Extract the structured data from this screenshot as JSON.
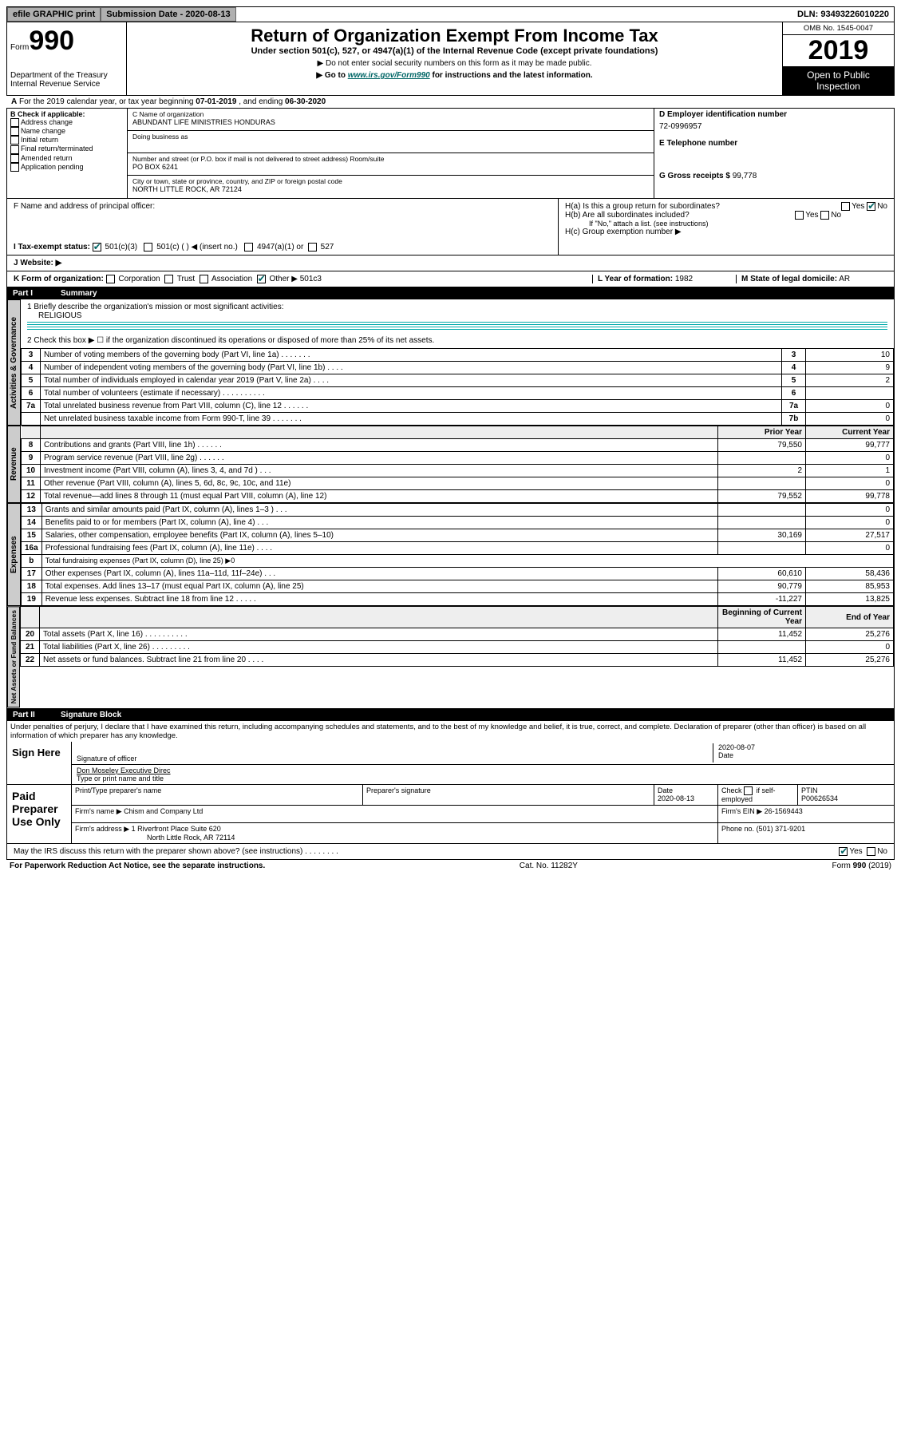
{
  "topbar": {
    "efile": "efile GRAPHIC print",
    "submission": "Submission Date - 2020-08-13",
    "dln": "DLN: 93493226010220"
  },
  "header": {
    "form_word": "Form",
    "form_no": "990",
    "dept1": "Department of the Treasury",
    "dept2": "Internal Revenue Service",
    "title": "Return of Organization Exempt From Income Tax",
    "sub1": "Under section 501(c), 527, or 4947(a)(1) of the Internal Revenue Code (except private foundations)",
    "sub2": "▶ Do not enter social security numbers on this form as it may be made public.",
    "sub3a": "▶ Go to ",
    "sub3link": "www.irs.gov/Form990",
    "sub3b": " for instructions and the latest information.",
    "omb": "OMB No. 1545-0047",
    "year": "2019",
    "pub": "Open to Public Inspection"
  },
  "period": {
    "text_a": "For the 2019 calendar year, or tax year beginning ",
    "begin": "07-01-2019",
    "text_b": " , and ending ",
    "end": "06-30-2020"
  },
  "box_b": {
    "label": "B Check if applicable:",
    "opts": [
      "Address change",
      "Name change",
      "Initial return",
      "Final return/terminated",
      "Amended return",
      "Application pending"
    ]
  },
  "box_c": {
    "name_lbl": "C Name of organization",
    "name": "ABUNDANT LIFE MINISTRIES HONDURAS",
    "dba_lbl": "Doing business as",
    "addr_lbl": "Number and street (or P.O. box if mail is not delivered to street address)     Room/suite",
    "addr": "PO BOX 6241",
    "city_lbl": "City or town, state or province, country, and ZIP or foreign postal code",
    "city": "NORTH LITTLE ROCK, AR  72124"
  },
  "box_d": {
    "ein_lbl": "D Employer identification number",
    "ein": "72-0996957",
    "tel_lbl": "E Telephone number",
    "gross_lbl": "G Gross receipts $",
    "gross": "99,778"
  },
  "box_f": {
    "label": "F  Name and address of principal officer:"
  },
  "box_h": {
    "a": "H(a)  Is this a group return for subordinates?",
    "b": "H(b)  Are all subordinates included?",
    "bnote": "If \"No,\" attach a list. (see instructions)",
    "c": "H(c)  Group exemption number ▶"
  },
  "row_i": {
    "label": "I  Tax-exempt status:",
    "o1": "501(c)(3)",
    "o2": "501(c) (   ) ◀ (insert no.)",
    "o3": "4947(a)(1) or",
    "o4": "527"
  },
  "row_j": {
    "label": "J  Website: ▶"
  },
  "row_k": {
    "label": "K Form of organization:",
    "o1": "Corporation",
    "o2": "Trust",
    "o3": "Association",
    "o4": "Other ▶",
    "o4v": "501c3",
    "l": "L Year of formation:",
    "lv": "1982",
    "m": "M State of legal domicile:",
    "mv": "AR"
  },
  "part1": {
    "label": "Part I",
    "title": "Summary"
  },
  "summary": {
    "q1": "1  Briefly describe the organization's mission or most significant activities:",
    "q1v": "RELIGIOUS",
    "q2": "2  Check this box ▶ ☐  if the organization discontinued its operations or disposed of more than 25% of its net assets.",
    "rows_a": [
      {
        "n": "3",
        "t": "Number of voting members of the governing body (Part VI, line 1a)  .   .   .   .   .   .   .",
        "c": "3",
        "v": "10"
      },
      {
        "n": "4",
        "t": "Number of independent voting members of the governing body (Part VI, line 1b)  .   .   .   .",
        "c": "4",
        "v": "9"
      },
      {
        "n": "5",
        "t": "Total number of individuals employed in calendar year 2019 (Part V, line 2a)   .   .   .   .",
        "c": "5",
        "v": "2"
      },
      {
        "n": "6",
        "t": "Total number of volunteers (estimate if necessary)   .   .   .   .   .   .   .   .   .   .",
        "c": "6",
        "v": ""
      },
      {
        "n": "7a",
        "t": "Total unrelated business revenue from Part VIII, column (C), line 12   .   .   .   .   .   .",
        "c": "7a",
        "v": "0"
      },
      {
        "n": "",
        "t": "Net unrelated business taxable income from Form 990-T, line 39   .   .   .   .   .   .   .",
        "c": "7b",
        "v": "0"
      }
    ],
    "hdr_prior": "Prior Year",
    "hdr_curr": "Current Year",
    "rev": [
      {
        "n": "8",
        "t": "Contributions and grants (Part VIII, line 1h)   .   .   .   .   .   .",
        "p": "79,550",
        "c": "99,777"
      },
      {
        "n": "9",
        "t": "Program service revenue (Part VIII, line 2g)   .   .   .   .   .   .",
        "p": "",
        "c": "0"
      },
      {
        "n": "10",
        "t": "Investment income (Part VIII, column (A), lines 3, 4, and 7d )  .   .   .",
        "p": "2",
        "c": "1"
      },
      {
        "n": "11",
        "t": "Other revenue (Part VIII, column (A), lines 5, 6d, 8c, 9c, 10c, and 11e)",
        "p": "",
        "c": "0"
      },
      {
        "n": "12",
        "t": "Total revenue—add lines 8 through 11 (must equal Part VIII, column (A), line 12)",
        "p": "79,552",
        "c": "99,778"
      }
    ],
    "exp": [
      {
        "n": "13",
        "t": "Grants and similar amounts paid (Part IX, column (A), lines 1–3 )  .   .   .",
        "p": "",
        "c": "0"
      },
      {
        "n": "14",
        "t": "Benefits paid to or for members (Part IX, column (A), line 4)   .   .   .",
        "p": "",
        "c": "0"
      },
      {
        "n": "15",
        "t": "Salaries, other compensation, employee benefits (Part IX, column (A), lines 5–10)",
        "p": "30,169",
        "c": "27,517"
      },
      {
        "n": "16a",
        "t": "Professional fundraising fees (Part IX, column (A), line 11e)   .   .   .   .",
        "p": "",
        "c": "0"
      },
      {
        "n": "b",
        "t": "Total fundraising expenses (Part IX, column (D), line 25) ▶0",
        "p": "—",
        "c": "—"
      },
      {
        "n": "17",
        "t": "Other expenses (Part IX, column (A), lines 11a–11d, 11f–24e)  .   .   .",
        "p": "60,610",
        "c": "58,436"
      },
      {
        "n": "18",
        "t": "Total expenses. Add lines 13–17 (must equal Part IX, column (A), line 25)",
        "p": "90,779",
        "c": "85,953"
      },
      {
        "n": "19",
        "t": "Revenue less expenses. Subtract line 18 from line 12   .   .   .   .   .",
        "p": "-11,227",
        "c": "13,825"
      }
    ],
    "hdr_beg": "Beginning of Current Year",
    "hdr_end": "End of Year",
    "net": [
      {
        "n": "20",
        "t": "Total assets (Part X, line 16)   .   .   .   .   .   .   .   .   .   .",
        "p": "11,452",
        "c": "25,276"
      },
      {
        "n": "21",
        "t": "Total liabilities (Part X, line 26)   .   .   .   .   .   .   .   .   .",
        "p": "",
        "c": "0"
      },
      {
        "n": "22",
        "t": "Net assets or fund balances. Subtract line 21 from line 20   .   .   .   .",
        "p": "11,452",
        "c": "25,276"
      }
    ]
  },
  "labels": {
    "gov": "Activities & Governance",
    "rev": "Revenue",
    "exp": "Expenses",
    "net": "Net Assets or Fund Balances"
  },
  "part2": {
    "label": "Part II",
    "title": "Signature Block",
    "decl": "Under penalties of perjury, I declare that I have examined this return, including accompanying schedules and statements, and to the best of my knowledge and belief, it is true, correct, and complete. Declaration of preparer (other than officer) is based on all information of which preparer has any knowledge."
  },
  "sign": {
    "here": "Sign Here",
    "sig_lbl": "Signature of officer",
    "date": "2020-08-07",
    "date_lbl": "Date",
    "name": "Don Moseley  Executive Direc",
    "name_lbl": "Type or print name and title"
  },
  "paid": {
    "here": "Paid Preparer Use Only",
    "h1": "Print/Type preparer's name",
    "h2": "Preparer's signature",
    "h3": "Date",
    "h3v": "2020-08-13",
    "h4a": "Check",
    "h4b": "if self-employed",
    "h5": "PTIN",
    "h5v": "P00626534",
    "firm_lbl": "Firm's name   ▶",
    "firm": "Chism and Company Ltd",
    "ein_lbl": "Firm's EIN ▶",
    "ein": "26-1569443",
    "addr_lbl": "Firm's address ▶",
    "addr1": "1 Riverfront Place Suite 620",
    "addr2": "North Little Rock, AR  72114",
    "ph_lbl": "Phone no.",
    "ph": "(501) 371-9201"
  },
  "discuss": "May the IRS discuss this return with the preparer shown above? (see instructions)   .   .   .   .   .   .   .   .",
  "foot": {
    "l": "For Paperwork Reduction Act Notice, see the separate instructions.",
    "m": "Cat. No. 11282Y",
    "r": "Form 990 (2019)"
  }
}
